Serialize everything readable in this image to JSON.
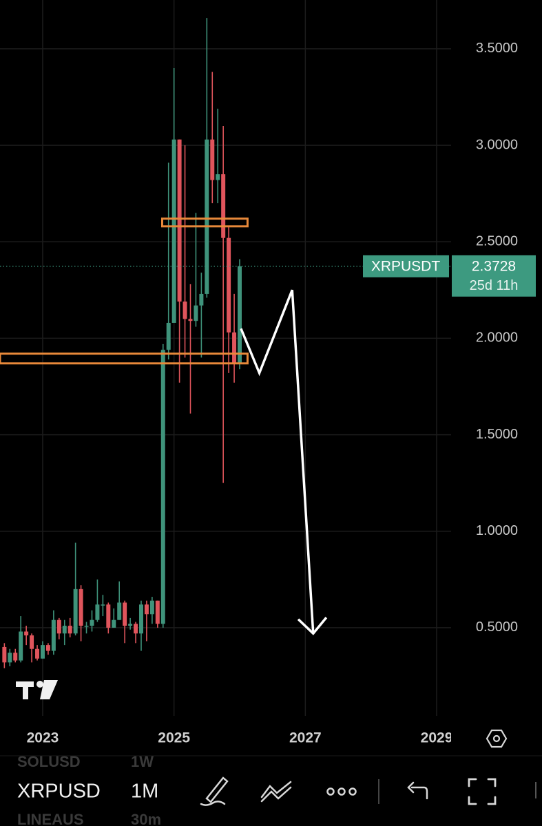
{
  "chart_data": {
    "type": "candlestick",
    "x": [
      2022.4167,
      2022.5,
      2022.5833,
      2022.6667,
      2022.75,
      2022.8333,
      2022.9167,
      2023,
      2023.0833,
      2023.1667,
      2023.25,
      2023.3333,
      2023.4167,
      2023.5,
      2023.5833,
      2023.6667,
      2023.75,
      2023.8333,
      2023.9167,
      2024,
      2024.0833,
      2024.1667,
      2024.25,
      2024.3333,
      2024.4167,
      2024.5,
      2024.5833,
      2024.6667,
      2024.75,
      2024.8333,
      2024.9167,
      2025,
      2025.0833,
      2025.1667,
      2025.25,
      2025.3333,
      2025.4167,
      2025.5,
      2025.5833,
      2025.6667,
      2025.75,
      2025.8333,
      2025.9167,
      2026
    ],
    "open": [
      0.4,
      0.32,
      0.37,
      0.33,
      0.48,
      0.46,
      0.39,
      0.34,
      0.41,
      0.38,
      0.54,
      0.47,
      0.51,
      0.47,
      0.7,
      0.51,
      0.51,
      0.54,
      0.62,
      0.62,
      0.5,
      0.54,
      0.63,
      0.51,
      0.52,
      0.47,
      0.62,
      0.57,
      0.64,
      0.52,
      1.94,
      2.08,
      3.03,
      2.19,
      2.1,
      2.09,
      2.17,
      2.23,
      3.03,
      2.82,
      2.85,
      2.52,
      2.03,
      1.87
    ],
    "high": [
      0.42,
      0.39,
      0.39,
      0.56,
      0.51,
      0.47,
      0.41,
      0.43,
      0.42,
      0.59,
      0.55,
      0.54,
      0.55,
      0.94,
      0.72,
      0.53,
      0.59,
      0.75,
      0.67,
      0.63,
      0.6,
      0.74,
      0.64,
      0.55,
      0.53,
      0.64,
      0.64,
      0.66,
      0.64,
      1.97,
      2.91,
      3.4,
      3.03,
      3.0,
      2.28,
      2.65,
      2.34,
      3.66,
      3.38,
      3.19,
      3.1,
      2.58,
      2.23,
      2.41
    ],
    "low": [
      0.29,
      0.3,
      0.32,
      0.32,
      0.41,
      0.32,
      0.33,
      0.34,
      0.36,
      0.36,
      0.44,
      0.41,
      0.45,
      0.46,
      0.43,
      0.47,
      0.48,
      0.53,
      0.56,
      0.47,
      0.5,
      0.54,
      0.42,
      0.49,
      0.42,
      0.38,
      0.43,
      0.52,
      0.5,
      0.5,
      1.89,
      2.08,
      1.77,
      1.9,
      1.61,
      2.06,
      1.9,
      2.21,
      2.7,
      2.7,
      1.25,
      1.82,
      1.77,
      1.84
    ],
    "close": [
      0.32,
      0.37,
      0.33,
      0.48,
      0.46,
      0.39,
      0.34,
      0.41,
      0.38,
      0.54,
      0.47,
      0.51,
      0.47,
      0.7,
      0.51,
      0.51,
      0.54,
      0.62,
      0.62,
      0.5,
      0.54,
      0.63,
      0.51,
      0.52,
      0.47,
      0.62,
      0.57,
      0.64,
      0.52,
      1.94,
      2.08,
      3.03,
      2.19,
      2.1,
      2.09,
      2.17,
      2.23,
      3.03,
      2.82,
      2.85,
      2.52,
      2.03,
      1.87,
      2.3728
    ],
    "up_color": "#3f937b",
    "down_color": "#e0555c",
    "xlim": [
      2022.35,
      2029.22
    ],
    "xticks": [
      2023,
      2025,
      2027,
      2029
    ],
    "ylim": [
      0.043,
      3.753
    ],
    "yticks": [
      {
        "value": 0.5,
        "label": "0.5000"
      },
      {
        "value": 1,
        "label": "1.0000"
      },
      {
        "value": 1.5,
        "label": "1.5000"
      },
      {
        "value": 2,
        "label": "2.0000"
      },
      {
        "value": 2.5,
        "label": "2.5000"
      },
      {
        "value": 3,
        "label": "3.0000"
      },
      {
        "value": 3.5,
        "label": "3.5000"
      }
    ],
    "grid": true,
    "zones": [
      {
        "from": 2.58,
        "to": 2.62,
        "x": [
          2024.82,
          2026.12
        ]
      },
      {
        "from": 1.87,
        "to": 1.92,
        "x": [
          2022.35,
          2026.12
        ]
      }
    ],
    "zone_color": "#e8893a",
    "projection": {
      "x": [
        2026.02,
        2026.3,
        2026.8,
        2027.12
      ],
      "y": [
        2.05,
        1.82,
        2.25,
        0.47
      ],
      "color": "#ffffff"
    },
    "price_label": {
      "symbol": "XRPUSDT",
      "value": 2.3728,
      "countdown": "25d 11h",
      "color": "#3d9a80"
    }
  },
  "toolbar": {
    "symbol": "XRPUSD",
    "interval": "1M",
    "prev_symbol": "SOLUSD",
    "prev_interval": "1W",
    "next_symbol": "LINEAUS",
    "next_interval": "30m"
  }
}
